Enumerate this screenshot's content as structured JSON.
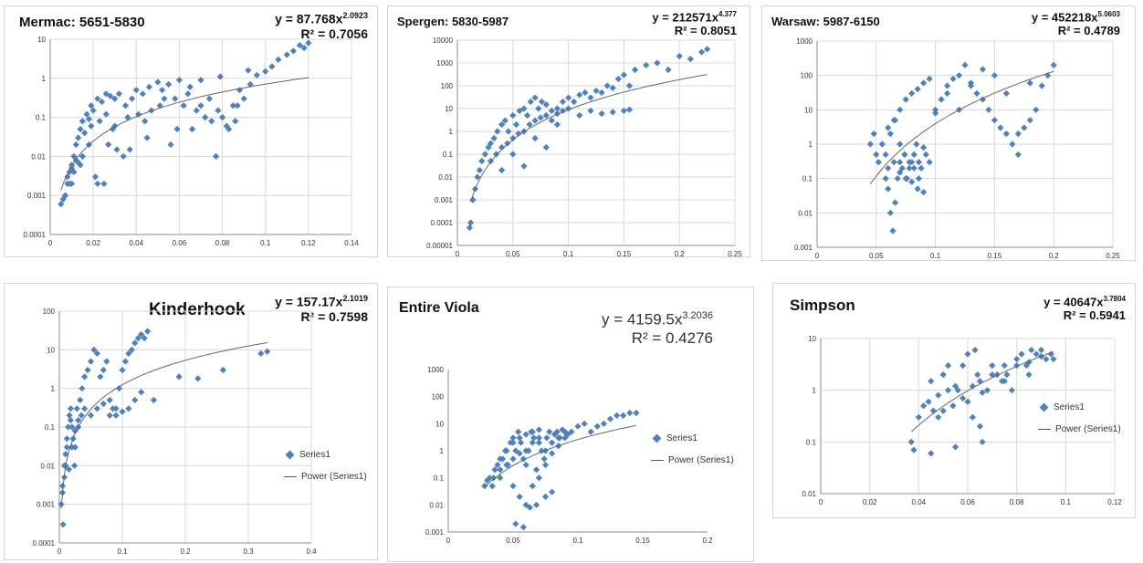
{
  "colors": {
    "marker": "#4f81bd",
    "trend": "#666666",
    "grid": "#d9d9d9",
    "axis": "#8c8c8c"
  },
  "chart_data": [
    {
      "id": "mermac",
      "type": "scatter",
      "title": "Mermac: 5651-5830",
      "equation": {
        "prefix": "y = 87.768x",
        "exponent": "2.0923",
        "r2": "R² = 0.7056"
      },
      "xlim": [
        0,
        0.14
      ],
      "xticks": [
        "0",
        "0.02",
        "0.04",
        "0.06",
        "0.08",
        "0.1",
        "0.12",
        "0.14"
      ],
      "ylim_log": [
        -4,
        1
      ],
      "yticks": [
        "0.0001",
        "0.001",
        "0.01",
        "0.1",
        "1",
        "10"
      ],
      "grid": {
        "x": true,
        "y": true
      },
      "log_y": true,
      "trend": {
        "a": 87.768,
        "b": 2.0923,
        "x_from": 0.005,
        "x_to": 0.12
      },
      "x": [
        0.005,
        0.006,
        0.007,
        0.008,
        0.009,
        0.01,
        0.011,
        0.012,
        0.013,
        0.014,
        0.015,
        0.017,
        0.019,
        0.02,
        0.022,
        0.024,
        0.026,
        0.028,
        0.03,
        0.032,
        0.035,
        0.038,
        0.04,
        0.043,
        0.046,
        0.05,
        0.052,
        0.055,
        0.058,
        0.06,
        0.062,
        0.065,
        0.068,
        0.07,
        0.072,
        0.075,
        0.078,
        0.08,
        0.082,
        0.085,
        0.088,
        0.09,
        0.093,
        0.096,
        0.1,
        0.103,
        0.106,
        0.11,
        0.113,
        0.116,
        0.118,
        0.12,
        0.008,
        0.01,
        0.012,
        0.015,
        0.018,
        0.021,
        0.025,
        0.029,
        0.034,
        0.045,
        0.056,
        0.066,
        0.077,
        0.087,
        0.009,
        0.011,
        0.013,
        0.016,
        0.019,
        0.023,
        0.027,
        0.031,
        0.036,
        0.041,
        0.047,
        0.053,
        0.059,
        0.064,
        0.07,
        0.074,
        0.079,
        0.083,
        0.086,
        0.092,
        0.007,
        0.01,
        0.014,
        0.018,
        0.022,
        0.026,
        0.03,
        0.037,
        0.044,
        0.051
      ],
      "y": [
        0.0006,
        0.0008,
        0.001,
        0.002,
        0.004,
        0.006,
        0.01,
        0.02,
        0.03,
        0.05,
        0.08,
        0.12,
        0.2,
        0.15,
        0.3,
        0.25,
        0.4,
        0.35,
        0.3,
        0.4,
        0.2,
        0.3,
        0.5,
        0.4,
        0.6,
        0.8,
        0.5,
        0.7,
        0.3,
        0.9,
        0.2,
        0.6,
        0.15,
        0.2,
        0.1,
        0.08,
        0.15,
        0.1,
        0.06,
        0.2,
        0.5,
        0.3,
        0.7,
        1.2,
        1.5,
        2,
        3,
        4,
        5,
        7,
        6,
        8,
        0.003,
        0.005,
        0.008,
        0.01,
        0.02,
        0.003,
        0.002,
        0.05,
        0.01,
        0.03,
        0.02,
        0.05,
        0.01,
        0.2,
        0.002,
        0.004,
        0.007,
        0.04,
        0.06,
        0.08,
        0.02,
        0.015,
        0.1,
        0.12,
        0.15,
        0.3,
        0.05,
        0.4,
        0.9,
        0.3,
        1.1,
        0.05,
        0.08,
        1.6,
        0.001,
        0.002,
        0.006,
        0.09,
        0.002,
        0.12,
        0.06,
        0.015,
        0.08,
        0.2
      ],
      "x_label_unit": ""
    },
    {
      "id": "spergen",
      "type": "scatter",
      "title": "Spergen: 5830-5987",
      "equation": {
        "prefix": "y = 212571x",
        "exponent": "4.377",
        "r2": "R² = 0.8051"
      },
      "xlim": [
        0,
        0.25
      ],
      "xticks": [
        "0",
        "0.05",
        "0.1",
        "0.15",
        "0.2",
        "0.25"
      ],
      "ylim_log": [
        -5,
        4
      ],
      "yticks": [
        "0.00001",
        "0.0001",
        "0.001",
        "0.01",
        "0.1",
        "1",
        "10",
        "100",
        "1000",
        "10000"
      ],
      "grid": {
        "x": true,
        "y": true
      },
      "log_y": true,
      "trend": {
        "a": 212571,
        "b": 4.377,
        "x_from": 0.012,
        "x_to": 0.225
      },
      "x": [
        0.011,
        0.012,
        0.014,
        0.016,
        0.018,
        0.02,
        0.022,
        0.025,
        0.028,
        0.03,
        0.033,
        0.036,
        0.04,
        0.043,
        0.046,
        0.05,
        0.053,
        0.056,
        0.06,
        0.063,
        0.066,
        0.07,
        0.073,
        0.076,
        0.08,
        0.085,
        0.09,
        0.095,
        0.1,
        0.105,
        0.11,
        0.115,
        0.12,
        0.125,
        0.13,
        0.135,
        0.14,
        0.145,
        0.15,
        0.155,
        0.16,
        0.17,
        0.18,
        0.19,
        0.2,
        0.21,
        0.22,
        0.225,
        0.03,
        0.035,
        0.04,
        0.045,
        0.05,
        0.055,
        0.06,
        0.065,
        0.07,
        0.075,
        0.08,
        0.085,
        0.09,
        0.095,
        0.1,
        0.11,
        0.12,
        0.13,
        0.14,
        0.15,
        0.155,
        0.04,
        0.05,
        0.06,
        0.07,
        0.08,
        0.09
      ],
      "y": [
        6e-05,
        0.0001,
        0.001,
        0.003,
        0.01,
        0.02,
        0.05,
        0.1,
        0.2,
        0.3,
        0.5,
        1,
        2,
        3,
        1,
        5,
        2,
        8,
        10,
        5,
        20,
        30,
        10,
        20,
        15,
        8,
        10,
        20,
        30,
        20,
        40,
        50,
        30,
        60,
        50,
        100,
        80,
        200,
        300,
        100,
        500,
        800,
        1000,
        500,
        2000,
        1500,
        3000,
        4000,
        0.05,
        0.1,
        0.2,
        0.3,
        0.5,
        0.8,
        1,
        2,
        3,
        4,
        5,
        3,
        6,
        8,
        10,
        5,
        8,
        6,
        7,
        8,
        9,
        0.02,
        0.1,
        0.03,
        0.5,
        0.2,
        2
      ],
      "x_label_unit": ""
    },
    {
      "id": "warsaw",
      "type": "scatter",
      "title": "Warsaw: 5987-6150",
      "equation": {
        "prefix": "y = 452218x",
        "exponent": "5.0603",
        "r2": "R² = 0.4789"
      },
      "xlim": [
        0,
        0.25
      ],
      "xticks": [
        "0",
        "0.05",
        "0.1",
        "0.15",
        "0.2",
        "0.25"
      ],
      "ylim_log": [
        -3,
        3
      ],
      "yticks": [
        "0.001",
        "0.01",
        "0.1",
        "1",
        "10",
        "100",
        "1000"
      ],
      "grid": {
        "x": true,
        "y": true
      },
      "log_y": true,
      "trend": {
        "a": 452218,
        "b": 5.0603,
        "x_from": 0.045,
        "x_to": 0.2
      },
      "x": [
        0.045,
        0.048,
        0.05,
        0.052,
        0.055,
        0.058,
        0.06,
        0.062,
        0.064,
        0.066,
        0.068,
        0.07,
        0.072,
        0.074,
        0.076,
        0.078,
        0.08,
        0.082,
        0.084,
        0.086,
        0.088,
        0.09,
        0.092,
        0.095,
        0.1,
        0.105,
        0.11,
        0.115,
        0.12,
        0.125,
        0.13,
        0.135,
        0.14,
        0.145,
        0.15,
        0.155,
        0.16,
        0.165,
        0.17,
        0.175,
        0.18,
        0.185,
        0.19,
        0.195,
        0.2,
        0.06,
        0.065,
        0.07,
        0.075,
        0.08,
        0.085,
        0.09,
        0.095,
        0.06,
        0.065,
        0.07,
        0.075,
        0.08,
        0.085,
        0.09,
        0.1,
        0.11,
        0.12,
        0.13,
        0.14,
        0.15,
        0.16,
        0.17,
        0.18,
        0.058,
        0.062,
        0.066,
        0.07,
        0.074,
        0.078,
        0.082,
        0.086
      ],
      "y": [
        1,
        2,
        0.5,
        0.3,
        1,
        0.1,
        0.05,
        0.01,
        0.003,
        0.02,
        0.1,
        0.3,
        0.2,
        0.5,
        0.1,
        0.2,
        0.3,
        0.5,
        1,
        0.3,
        0.2,
        0.8,
        0.5,
        0.3,
        10,
        20,
        50,
        80,
        100,
        200,
        50,
        30,
        20,
        10,
        5,
        3,
        2,
        1,
        0.5,
        3,
        5,
        10,
        50,
        100,
        200,
        3,
        5,
        10,
        20,
        30,
        40,
        60,
        80,
        0.2,
        0.3,
        0.15,
        0.1,
        0.08,
        0.05,
        0.04,
        8,
        30,
        10,
        60,
        150,
        100,
        30,
        2,
        60,
        0.5,
        2,
        5,
        1,
        0.5,
        0.3,
        0.2,
        0.1
      ],
      "x_label_unit": ""
    },
    {
      "id": "kinderhook",
      "type": "scatter",
      "title": "Kinderhook",
      "equation": {
        "prefix": "y = 157.17x",
        "exponent": "2.1019",
        "r2": "R² = 0.7598"
      },
      "xlim": [
        0,
        0.4
      ],
      "xticks": [
        "0",
        "0.1",
        "0.2",
        "0.3",
        "0.4"
      ],
      "ylim_log": [
        -4,
        2
      ],
      "yticks": [
        "0.0001",
        "0.001",
        "0.01",
        "0.1",
        "1",
        "10",
        "100"
      ],
      "grid": {
        "x": true,
        "y": true
      },
      "log_y": true,
      "legend": {
        "series": "Series1",
        "trend": "Power (Series1)"
      },
      "trend": {
        "a": 157.17,
        "b": 2.1019,
        "x_from": 0.003,
        "x_to": 0.33
      },
      "x": [
        0.003,
        0.005,
        0.006,
        0.008,
        0.01,
        0.012,
        0.014,
        0.016,
        0.018,
        0.02,
        0.022,
        0.025,
        0.028,
        0.03,
        0.033,
        0.036,
        0.04,
        0.045,
        0.05,
        0.055,
        0.06,
        0.065,
        0.07,
        0.075,
        0.08,
        0.085,
        0.09,
        0.095,
        0.1,
        0.105,
        0.11,
        0.115,
        0.12,
        0.125,
        0.13,
        0.135,
        0.14,
        0.15,
        0.19,
        0.22,
        0.26,
        0.32,
        0.33,
        0.008,
        0.01,
        0.015,
        0.02,
        0.025,
        0.03,
        0.035,
        0.04,
        0.05,
        0.06,
        0.07,
        0.08,
        0.09,
        0.1,
        0.11,
        0.12,
        0.13,
        0.005,
        0.012,
        0.018,
        0.024
      ],
      "y": [
        0.001,
        0.003,
        0.0003,
        0.01,
        0.02,
        0.05,
        0.1,
        0.2,
        0.3,
        0.1,
        0.05,
        0.03,
        0.3,
        0.1,
        0.5,
        1,
        2,
        3,
        5,
        10,
        8,
        2,
        3,
        5,
        0.5,
        0.3,
        0.2,
        1,
        3,
        5,
        8,
        10,
        15,
        20,
        25,
        20,
        30,
        0.5,
        2,
        1.8,
        3,
        8,
        9,
        0.005,
        0.01,
        0.008,
        0.03,
        0.08,
        0.15,
        0.2,
        0.3,
        0.2,
        0.3,
        0.4,
        0.2,
        0.3,
        0.25,
        0.3,
        0.5,
        0.8,
        0.002,
        0.03,
        0.15,
        0.01
      ],
      "x_label_unit": ""
    },
    {
      "id": "viola",
      "type": "scatter",
      "title": "Entire Viola",
      "equation": {
        "prefix": "y = 4159.5x",
        "exponent": "3.2036",
        "r2": "R² = 0.4276"
      },
      "xlim": [
        0,
        0.2
      ],
      "xticks": [
        "0",
        "0.05",
        "0.1",
        "0.15",
        "0.2"
      ],
      "ylim_log": [
        -3,
        3
      ],
      "yticks": [
        "0.001",
        "0.01",
        "0.1",
        "1",
        "10",
        "100",
        "1000"
      ],
      "grid": {
        "x": false,
        "y": false
      },
      "log_y": true,
      "legend": {
        "series": "Series1",
        "trend": "Power (Series1)"
      },
      "trend": {
        "a": 4159.5,
        "b": 3.2036,
        "x_from": 0.028,
        "x_to": 0.145
      },
      "x": [
        0.028,
        0.03,
        0.032,
        0.034,
        0.036,
        0.038,
        0.04,
        0.042,
        0.044,
        0.046,
        0.048,
        0.05,
        0.052,
        0.054,
        0.056,
        0.058,
        0.06,
        0.062,
        0.064,
        0.066,
        0.068,
        0.07,
        0.072,
        0.074,
        0.076,
        0.078,
        0.08,
        0.082,
        0.084,
        0.086,
        0.088,
        0.09,
        0.092,
        0.095,
        0.1,
        0.105,
        0.11,
        0.115,
        0.12,
        0.125,
        0.13,
        0.135,
        0.14,
        0.145,
        0.035,
        0.04,
        0.045,
        0.05,
        0.055,
        0.06,
        0.065,
        0.07,
        0.075,
        0.08,
        0.085,
        0.09,
        0.05,
        0.055,
        0.06,
        0.065,
        0.07,
        0.075,
        0.08,
        0.052,
        0.058,
        0.063,
        0.068,
        0.04,
        0.045,
        0.05,
        0.055,
        0.06,
        0.065,
        0.07,
        0.075,
        0.08,
        0.085,
        0.09
      ],
      "y": [
        0.05,
        0.08,
        0.1,
        0.05,
        0.2,
        0.3,
        0.1,
        0.5,
        1,
        0.3,
        2,
        3,
        1,
        5,
        2,
        0.5,
        0.3,
        1,
        5,
        3,
        0.2,
        2,
        1,
        0.5,
        3,
        5,
        2,
        4,
        5,
        3,
        6,
        5,
        4,
        5,
        8,
        10,
        5,
        8,
        10,
        15,
        20,
        20,
        25,
        25,
        0.1,
        0.2,
        0.3,
        0.5,
        0.8,
        1,
        2,
        3,
        1,
        2,
        3,
        5,
        0.05,
        0.02,
        0.01,
        0.05,
        0.1,
        0.02,
        0.03,
        0.002,
        0.0015,
        0.008,
        0.01,
        0.5,
        1,
        2,
        3,
        4,
        5,
        6,
        0.3,
        0.8,
        1.5,
        3
      ],
      "x_label_unit": ""
    },
    {
      "id": "simpson",
      "type": "scatter",
      "title": "Simpson",
      "equation": {
        "prefix": "y = 40647x",
        "exponent": "3.7804",
        "r2": "R² = 0.5941"
      },
      "xlim": [
        0,
        0.12
      ],
      "xticks": [
        "0",
        "0.02",
        "0.04",
        "0.06",
        "0.08",
        "0.1",
        "0.12"
      ],
      "ylim_log": [
        -2,
        1
      ],
      "yticks": [
        "0.01",
        "0.1",
        "1",
        "10"
      ],
      "grid": {
        "x": true,
        "y": true
      },
      "log_y": true,
      "legend": {
        "series": "Series1",
        "trend": "Power (Series1)"
      },
      "trend": {
        "a": 40647,
        "b": 3.7804,
        "x_from": 0.037,
        "x_to": 0.095
      },
      "x": [
        0.037,
        0.038,
        0.04,
        0.042,
        0.044,
        0.045,
        0.046,
        0.048,
        0.05,
        0.052,
        0.054,
        0.055,
        0.056,
        0.058,
        0.06,
        0.062,
        0.063,
        0.064,
        0.065,
        0.066,
        0.068,
        0.07,
        0.072,
        0.074,
        0.075,
        0.076,
        0.078,
        0.08,
        0.082,
        0.084,
        0.085,
        0.086,
        0.088,
        0.09,
        0.092,
        0.094,
        0.095,
        0.045,
        0.05,
        0.055,
        0.06,
        0.065,
        0.07,
        0.075,
        0.08,
        0.085,
        0.09,
        0.048,
        0.052,
        0.058,
        0.062,
        0.066
      ],
      "y": [
        0.1,
        0.07,
        0.3,
        0.5,
        0.6,
        1.5,
        0.4,
        0.3,
        2,
        1,
        0.5,
        0.08,
        1,
        3,
        5,
        0.3,
        6,
        2,
        0.2,
        0.1,
        1,
        3,
        2,
        1.5,
        3,
        2,
        1,
        4,
        5,
        3,
        2,
        6,
        5,
        6,
        4,
        5,
        4,
        0.06,
        0.4,
        1.2,
        0.6,
        1.5,
        2,
        1.5,
        3,
        3.5,
        4.5,
        0.8,
        3,
        0.7,
        1.2,
        0.9
      ],
      "x_label_unit": ""
    }
  ]
}
